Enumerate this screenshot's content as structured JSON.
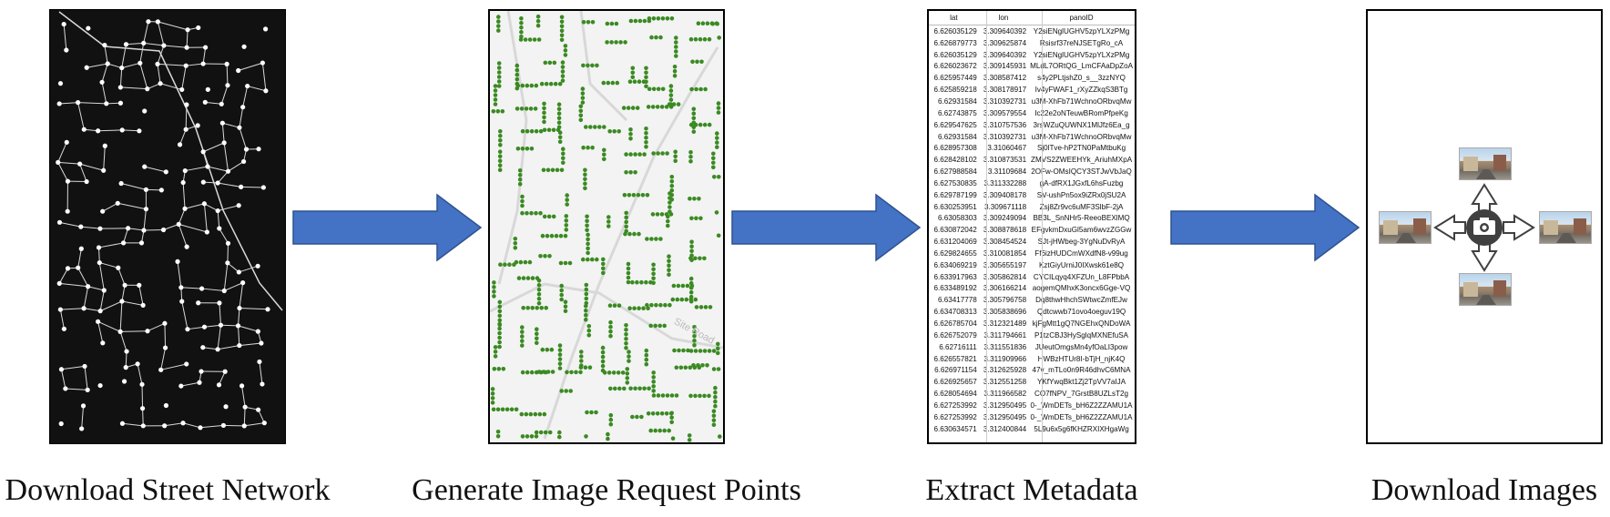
{
  "captions": {
    "step1": "Download Street Network",
    "step2": "Generate Image Request Points",
    "step3": "Extract Metadata",
    "step4": "Download Images"
  },
  "colors": {
    "arrow": "#4472c4",
    "arrow_border": "#2f528f",
    "network_bg": "#111111",
    "network_line": "#d9d9d9",
    "point": "#3a8a22",
    "camera": "#404040"
  },
  "map": {
    "road_label": "Site Road"
  },
  "metadata_table": {
    "headers": [
      "lat",
      "lon",
      "panoID"
    ],
    "rows": [
      [
        "6.626035129",
        "3.309640392",
        "Y2siENglUGHV5zpYLXzPMg"
      ],
      [
        "6.626879773",
        "3.309625874",
        "Rsisrf37reNJSETgRo_cA"
      ],
      [
        "6.626035129",
        "3.309640392",
        "Y2siENglUGHV5zpYLXzPMg"
      ],
      [
        "6.626023672",
        "3.309145931",
        "MLdL7ORtQG_LmCFAaDpZoA"
      ],
      [
        "6.625957449",
        "3.308587412",
        "s4y2PLtjshZ0_s__3zzNYQ"
      ],
      [
        "6.625859218",
        "3.308178917",
        "Iv4yFWAF1_rXyZZkqS3BTg"
      ],
      [
        "6.62931584",
        "3.310392731",
        "u3M-XhFb71WchnoORbvqMw"
      ],
      [
        "6.62743875",
        "3.309579554",
        "Ic22e2oNTeuwBRomPfpeKg"
      ],
      [
        "6.629547625",
        "3.310757536",
        "3rsWZuQUWNX1MlJfz6Ea_g"
      ],
      [
        "6.62931584",
        "3.310392731",
        "u3M-XhFb71WchnoORbvqMw"
      ],
      [
        "6.628957308",
        "3.31060467",
        "Sj0lTve-hP2TN0PaMtbuKg"
      ],
      [
        "6.628428102",
        "3.310873531",
        "ZMVS2ZWEEHYk_AriuhMXpA"
      ],
      [
        "6.627988584",
        "3.31109684",
        "2OFw-OMsIQCY3STJwVbJaQ"
      ],
      [
        "6.627530835",
        "3.311332288",
        "gA-dfRX1JGxfL6hsFuzbg"
      ],
      [
        "6.629787199",
        "3.309408178",
        "SV-ushPn5ox9iZRx0jSU2A"
      ],
      [
        "6.630253951",
        "3.309671118",
        "Zsj8Zr9vc6uMF3SlbF-2jA"
      ],
      [
        "6.63058303",
        "3.309249094",
        "BB3L_SnNHr5-ReeoBEXlMQ"
      ],
      [
        "6.630872042",
        "3.308878618",
        "EFgvkmDxuGl5am6wvzZGGw"
      ],
      [
        "6.631204069",
        "3.308454524",
        "SJt-jHWbeg-3YgNuDvRyA"
      ],
      [
        "6.629824655",
        "3.310081854",
        "Ff6izHUDCmWXdfN8-v99ug"
      ],
      [
        "6.634069219",
        "3.305655197",
        "KztGiyUrniJ0IXwsk61e8Q"
      ],
      [
        "6.633917963",
        "3.305862814",
        "CYCILqyq4XFZUn_L8FPbbA"
      ],
      [
        "6.633489192",
        "3.306166214",
        "aogemQMhxK3oncx6Gge-VQ"
      ],
      [
        "6.63417778",
        "3.305796758",
        "Dq8thwHhchSWtwcZmfEJw"
      ],
      [
        "6.634708313",
        "3.305838696",
        "Qdtcwwb71ovo4oeguv19Q"
      ],
      [
        "6.626785704",
        "3.312321489",
        "kjFgMtt1gQ7NGEhxQNDoWA"
      ],
      [
        "6.626752079",
        "3.311794661",
        "P1tzCBJ3HySglqMXNEfuSA"
      ],
      [
        "6.62716111",
        "3.311551836",
        "JUeutOmgsMn4yfOaLI3pow"
      ],
      [
        "6.626557821",
        "3.311909966",
        "HWBzHTUr8I-bTjH_njK4Q"
      ],
      [
        "6.626971154",
        "3.312625928",
        "47v_mTLo0n9R46dhvC6MNA"
      ],
      [
        "6.626925657",
        "3.312551258",
        "YKfYwqBkt1Zj2TpVV7aIJA"
      ],
      [
        "6.628054694",
        "3.311966582",
        "CO7fNPV_7GrstB8UZLsT2g"
      ],
      [
        "6.627253992",
        "3.312950495",
        "0-_WmDETs_bH6Z2ZZAMU1A"
      ],
      [
        "6.627253992",
        "3.312950495",
        "0-_WmDETs_bH6Z2ZZAMU1A"
      ],
      [
        "6.630634571",
        "3.312400844",
        "5L9u6x5g6fKHZRXIXHgaWg"
      ]
    ]
  }
}
